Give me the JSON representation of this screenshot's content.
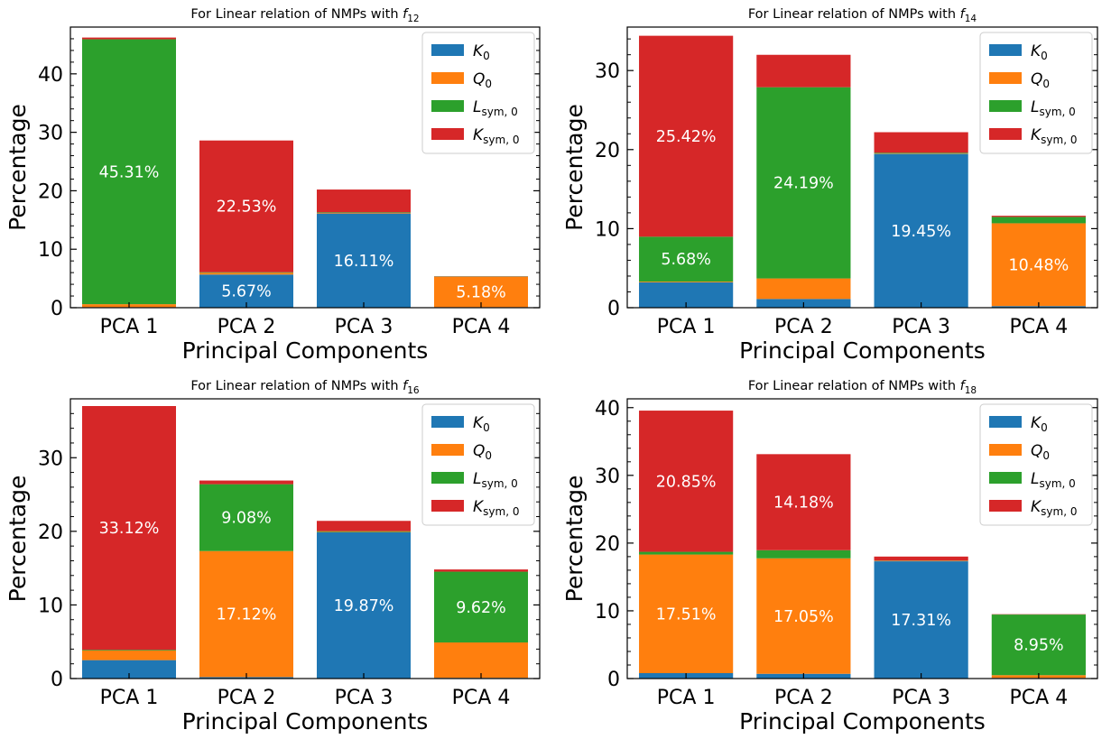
{
  "figure": {
    "colors": {
      "K0": "#1f77b4",
      "Q0": "#ff7f0e",
      "Lsym0": "#2ca02c",
      "Ksym0": "#d62728"
    },
    "legend": [
      {
        "key": "K0",
        "label": "K",
        "sub": "0"
      },
      {
        "key": "Q0",
        "label": "Q",
        "sub": "0"
      },
      {
        "key": "Lsym0",
        "label": "L",
        "sub": "sym, 0"
      },
      {
        "key": "Ksym0",
        "label": "K",
        "sub": "sym, 0"
      }
    ]
  },
  "chart_data": [
    {
      "type": "bar",
      "stacked": true,
      "title": "For Linear relation of NMPs with",
      "title_math": "f",
      "title_sub": "12",
      "xlabel": "Principal Components",
      "ylabel": "Percentage",
      "categories": [
        "PCA 1",
        "PCA 2",
        "PCA 3",
        "PCA 4"
      ],
      "ylim": [
        0,
        48
      ],
      "yticks": [
        0,
        10,
        20,
        30,
        40
      ],
      "legend_position": "top-right",
      "series": [
        {
          "key": "K0",
          "values": [
            0.1,
            5.67,
            16.11,
            0.1
          ]
        },
        {
          "key": "Q0",
          "values": [
            0.5,
            0.3,
            0.1,
            5.18
          ]
        },
        {
          "key": "Lsym0",
          "values": [
            45.31,
            0.1,
            0.1,
            0.05
          ]
        },
        {
          "key": "Ksym0",
          "values": [
            0.3,
            22.53,
            3.9,
            0.05
          ]
        }
      ],
      "bar_labels": [
        {
          "category": "PCA 1",
          "series": "Lsym0",
          "text": "45.31%"
        },
        {
          "category": "PCA 2",
          "series": "K0",
          "text": "5.67%"
        },
        {
          "category": "PCA 2",
          "series": "Ksym0",
          "text": "22.53%"
        },
        {
          "category": "PCA 3",
          "series": "K0",
          "text": "16.11%"
        },
        {
          "category": "PCA 4",
          "series": "Q0",
          "text": "5.18%"
        }
      ]
    },
    {
      "type": "bar",
      "stacked": true,
      "title": "For Linear relation of NMPs with",
      "title_math": "f",
      "title_sub": "14",
      "xlabel": "Principal Components",
      "ylabel": "Percentage",
      "categories": [
        "PCA 1",
        "PCA 2",
        "PCA 3",
        "PCA 4"
      ],
      "ylim": [
        0,
        35.5
      ],
      "yticks": [
        0,
        10,
        20,
        30
      ],
      "legend_position": "top-right",
      "series": [
        {
          "key": "K0",
          "values": [
            3.2,
            1.1,
            19.45,
            0.2
          ]
        },
        {
          "key": "Q0",
          "values": [
            0.1,
            2.6,
            0.05,
            10.48
          ]
        },
        {
          "key": "Lsym0",
          "values": [
            5.68,
            24.19,
            0.1,
            0.8
          ]
        },
        {
          "key": "Ksym0",
          "values": [
            25.42,
            4.1,
            2.6,
            0.15
          ]
        }
      ],
      "bar_labels": [
        {
          "category": "PCA 1",
          "series": "Lsym0",
          "text": "5.68%"
        },
        {
          "category": "PCA 1",
          "series": "Ksym0",
          "text": "25.42%"
        },
        {
          "category": "PCA 2",
          "series": "Lsym0",
          "text": "24.19%"
        },
        {
          "category": "PCA 3",
          "series": "K0",
          "text": "19.45%"
        },
        {
          "category": "PCA 4",
          "series": "Q0",
          "text": "10.48%"
        }
      ]
    },
    {
      "type": "bar",
      "stacked": true,
      "title": "For Linear relation of NMPs with",
      "title_math": "f",
      "title_sub": "16",
      "xlabel": "Principal Components",
      "ylabel": "Percentage",
      "categories": [
        "PCA 1",
        "PCA 2",
        "PCA 3",
        "PCA 4"
      ],
      "ylim": [
        0,
        38
      ],
      "yticks": [
        0,
        10,
        20,
        30
      ],
      "legend_position": "top-right",
      "series": [
        {
          "key": "K0",
          "values": [
            2.5,
            0.2,
            19.87,
            0.1
          ]
        },
        {
          "key": "Q0",
          "values": [
            1.3,
            17.12,
            0.05,
            4.8
          ]
        },
        {
          "key": "Lsym0",
          "values": [
            0.1,
            9.08,
            0.1,
            9.62
          ]
        },
        {
          "key": "Ksym0",
          "values": [
            33.12,
            0.5,
            1.4,
            0.3
          ]
        }
      ],
      "bar_labels": [
        {
          "category": "PCA 1",
          "series": "Ksym0",
          "text": "33.12%"
        },
        {
          "category": "PCA 2",
          "series": "Q0",
          "text": "17.12%"
        },
        {
          "category": "PCA 2",
          "series": "Lsym0",
          "text": "9.08%"
        },
        {
          "category": "PCA 3",
          "series": "K0",
          "text": "19.87%"
        },
        {
          "category": "PCA 4",
          "series": "Lsym0",
          "text": "9.62%"
        }
      ]
    },
    {
      "type": "bar",
      "stacked": true,
      "title": "For Linear relation of NMPs with",
      "title_math": "f",
      "title_sub": "18",
      "xlabel": "Principal Components",
      "ylabel": "Percentage",
      "categories": [
        "PCA 1",
        "PCA 2",
        "PCA 3",
        "PCA 4"
      ],
      "ylim": [
        0,
        41.3
      ],
      "yticks": [
        0,
        10,
        20,
        30,
        40
      ],
      "legend_position": "top-right",
      "series": [
        {
          "key": "K0",
          "values": [
            0.8,
            0.7,
            17.31,
            0.1
          ]
        },
        {
          "key": "Q0",
          "values": [
            17.51,
            17.05,
            0.05,
            0.4
          ]
        },
        {
          "key": "Lsym0",
          "values": [
            0.4,
            1.2,
            0.05,
            8.95
          ]
        },
        {
          "key": "Ksym0",
          "values": [
            20.85,
            14.18,
            0.6,
            0.05
          ]
        }
      ],
      "bar_labels": [
        {
          "category": "PCA 1",
          "series": "Q0",
          "text": "17.51%"
        },
        {
          "category": "PCA 1",
          "series": "Ksym0",
          "text": "20.85%"
        },
        {
          "category": "PCA 2",
          "series": "Q0",
          "text": "17.05%"
        },
        {
          "category": "PCA 2",
          "series": "Ksym0",
          "text": "14.18%"
        },
        {
          "category": "PCA 3",
          "series": "K0",
          "text": "17.31%"
        },
        {
          "category": "PCA 4",
          "series": "Lsym0",
          "text": "8.95%"
        }
      ]
    }
  ]
}
